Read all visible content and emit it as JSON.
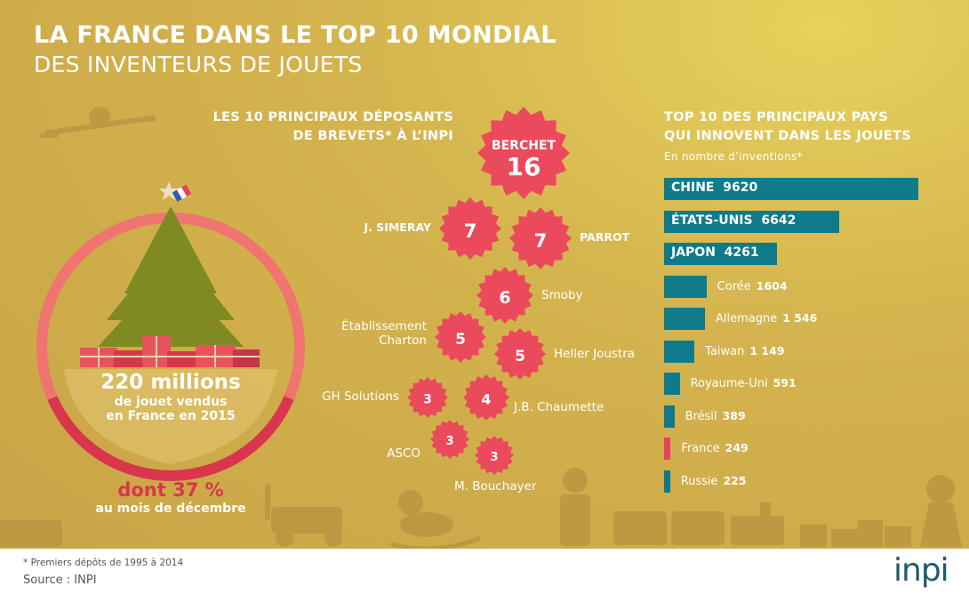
{
  "title_line1": "LA FRANCE DANS LE TOP 10 MONDIAL",
  "title_line2": "DES INVENTEURS DE JOUETS",
  "colors": {
    "teal": "#0f7a8a",
    "red": "#e8425a",
    "star": "#ea4a5c",
    "ring_light": "#f07470",
    "ring_dark": "#d9364e",
    "gold": "#cfac4b"
  },
  "sales": {
    "amount": "220 millions",
    "line2": "de jouet vendus",
    "line3": "en France en 2015",
    "december_share_percent": 37,
    "december_label": "dont 37 %",
    "december_sub": "au mois de décembre"
  },
  "chart_data": [
    {
      "type": "bubble",
      "title_line1": "LES 10 PRINCIPAUX DÉPOSANTS",
      "title_line2": "DE BREVETS* À L’INPI",
      "items": [
        {
          "name": "BERCHET",
          "value": 16
        },
        {
          "name": "J. SIMERAY",
          "value": 7
        },
        {
          "name": "PARROT",
          "value": 7
        },
        {
          "name": "Smoby",
          "value": 6
        },
        {
          "name": "Établissement Charton",
          "name_l1": "Établissement",
          "name_l2": "Charton",
          "value": 5
        },
        {
          "name": "Heller Joustra",
          "value": 5
        },
        {
          "name": "GH Solutions",
          "value": 3
        },
        {
          "name": "J.B. Chaumette",
          "value": 4
        },
        {
          "name": "ASCO",
          "value": 3
        },
        {
          "name": "M. Bouchayer",
          "value": 3
        }
      ]
    },
    {
      "type": "bar",
      "title_line1": "TOP 10 DES PRINCIPAUX PAYS",
      "title_line2": "QUI INNOVENT DANS LES JOUETS",
      "subtitle": "En nombre d’inventions*",
      "categories": [
        "CHINE",
        "ÉTATS-UNIS",
        "JAPON",
        "Corée",
        "Allemagne",
        "Taiwan",
        "Royaume-Uni",
        "Brésil",
        "France",
        "Russie"
      ],
      "values": [
        9620,
        6642,
        4261,
        1604,
        1546,
        1149,
        591,
        389,
        249,
        225
      ],
      "value_labels": [
        "9620",
        "6642",
        "4261",
        "1604",
        "1 546",
        "1 149",
        "591",
        "389",
        "249",
        "225"
      ],
      "highlight": "France"
    }
  ],
  "footer": {
    "note": "* Premiers dépôts de 1995 à 2014",
    "source": "Source : INPI",
    "logo": "inpi"
  }
}
